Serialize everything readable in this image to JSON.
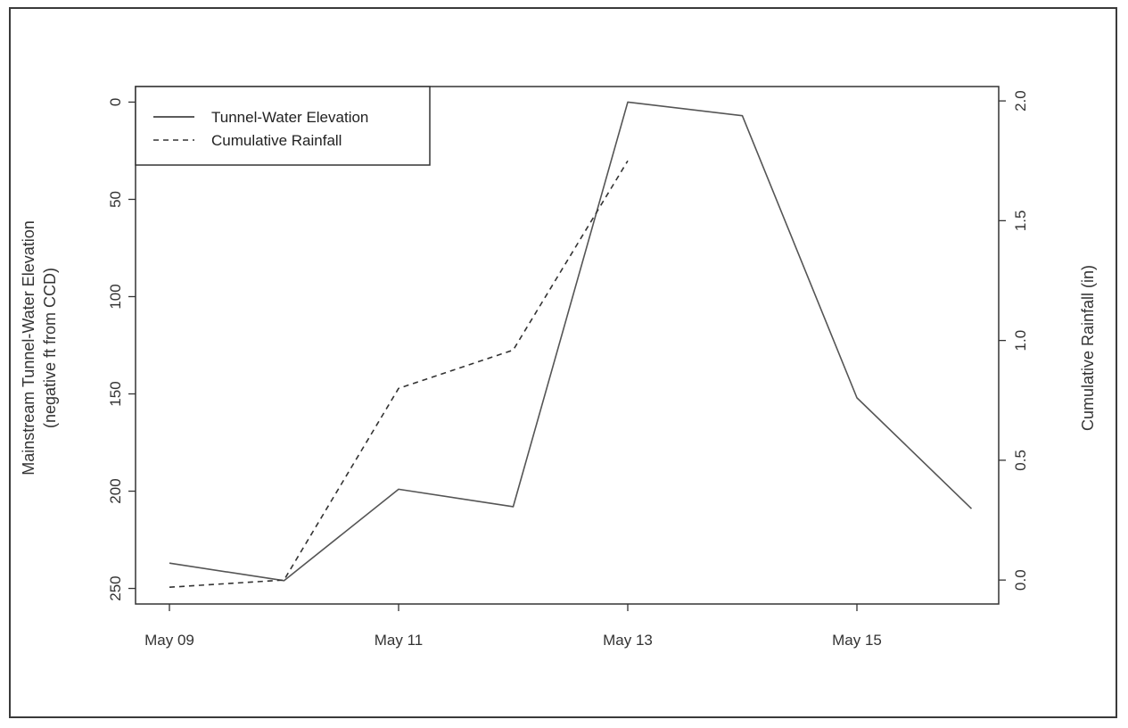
{
  "chart_data": {
    "type": "line",
    "x": [
      "May 09",
      "May 10",
      "May 11",
      "May 12",
      "May 13",
      "May 14",
      "May 15",
      "May 16"
    ],
    "x_ticks": [
      "May 09",
      "May 11",
      "May 13",
      "May 15"
    ],
    "series": [
      {
        "name": "Tunnel-Water Elevation",
        "axis": "left",
        "line_style": "solid",
        "color": "#555555",
        "x": [
          "May 09",
          "May 10",
          "May 11",
          "May 12",
          "May 13",
          "May 14",
          "May 15",
          "May 16"
        ],
        "values": [
          237,
          246,
          199,
          208,
          0,
          7,
          152,
          209
        ]
      },
      {
        "name": "Cumulative Rainfall",
        "axis": "right",
        "line_style": "dashed",
        "color": "#333333",
        "x": [
          "May 09",
          "May 10",
          "May 11",
          "May 12",
          "May 13"
        ],
        "values": [
          -0.03,
          0.0,
          0.8,
          0.96,
          1.75
        ]
      }
    ],
    "y_left": {
      "label_line1": "Mainstream Tunnel-Water Elevation",
      "label_line2": "(negative ft from CCD)",
      "range": [
        258,
        -8
      ],
      "inverted": true,
      "ticks": [
        0,
        50,
        100,
        150,
        200,
        250
      ],
      "tick_labels": [
        "0",
        "50",
        "100",
        "150",
        "200",
        "250"
      ]
    },
    "y_right": {
      "label": "Cumulative Rainfall (in)",
      "range": [
        -0.1,
        2.06
      ],
      "ticks": [
        0.0,
        0.5,
        1.0,
        1.5,
        2.0
      ],
      "tick_labels": [
        "0.0",
        "0.5",
        "1.0",
        "1.5",
        "2.0"
      ]
    },
    "legend": {
      "position": "top-left",
      "entries": [
        "Tunnel-Water Elevation",
        "Cumulative Rainfall"
      ]
    },
    "grid": false
  }
}
